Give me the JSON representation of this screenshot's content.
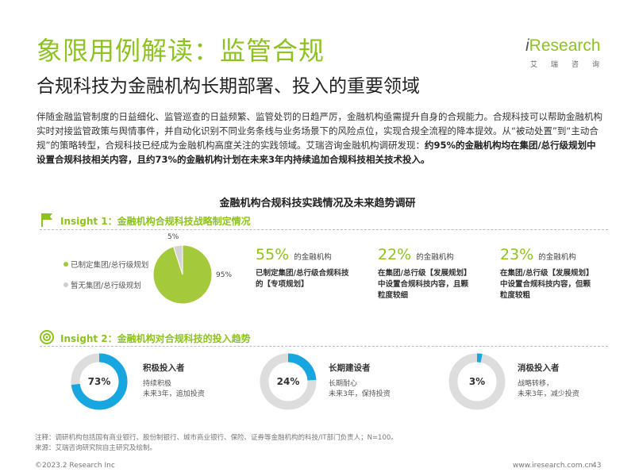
{
  "header": {
    "title": "象限用例解读：监管合规",
    "subtitle": "合规科技为金融机构长期部署、投入的重要领域"
  },
  "logo": {
    "word_i": "i",
    "word_rest": "Research",
    "cn": "艾瑞咨询"
  },
  "intro": {
    "normal": "伴随金融监管制度的日益细化、监管巡查的日益频繁、监管处罚的日趋严厉，金融机构亟需提升自身的合规能力。合规科技可以帮助金融机构实时对接监管政策与舆情事件，并自动化识别不同业务条线与业务场景下的风险点位，实现合规全流程的降本提效。从“被动处置”到“主动合规”的策略转型，合规科技已经成为金融机构高度关注的实践领域。艾瑞咨询金融机构调研发现：",
    "bold": "约95%的金融机构均在集团/总行级规划中设置合规科技相关内容，且约73%的金融机构计划在未来3年内持续追加合规科技相关技术投入。"
  },
  "survey_title": "金融机构合规科技实践情况及未来趋势调研",
  "insight1": {
    "label": "Insight 1：金融机构合规科技战略制定情况",
    "legend": [
      {
        "label": "已制定集团/总行级规划",
        "color": "#a4c93a"
      },
      {
        "label": "暂无集团/总行级规划",
        "color": "#cfcfcf"
      }
    ],
    "pie_labels": {
      "small": "5%",
      "large": "95%"
    },
    "stats": [
      {
        "value": "55%",
        "unit": "的金融机构",
        "desc_line1": "已制定集团/总行级合规科技",
        "desc_line2": "的【专项规划】"
      },
      {
        "value": "22%",
        "unit": "的金融机构",
        "desc_line1": "在集团/总行级【发展规划】",
        "desc_line2": "中设置合规科技内容，且颗",
        "desc_line3": "粒度较细"
      },
      {
        "value": "23%",
        "unit": "的金融机构",
        "desc_line1": "在集团/总行级【发展规划】",
        "desc_line2": "中设置合规科技内容，但颗",
        "desc_line3": "粒度较粗"
      }
    ]
  },
  "insight2": {
    "label": "Insight 2：金融机构对合规科技的投入趋势",
    "donuts": [
      {
        "pct_text": "73%",
        "title": "积极投入者",
        "line1": "持续积极",
        "line2": "未来3年，追加投资"
      },
      {
        "pct_text": "24%",
        "title": "长期建设者",
        "line1": "长期耐心",
        "line2": "未来3年，保持投资"
      },
      {
        "pct_text": "3%",
        "title": "消极投入者",
        "line1": "战略转移，",
        "line2": "未来3年，减少投资"
      }
    ]
  },
  "chart_data": [
    {
      "type": "pie",
      "categories": [
        "已制定集团/总行级规划",
        "暂无集团/总行级规划"
      ],
      "values": [
        95,
        5
      ],
      "colors": [
        "#a4c93a",
        "#d4d4d4"
      ]
    },
    {
      "type": "bar",
      "categories": [
        "积极投入者",
        "长期建设者",
        "消极投入者"
      ],
      "values": [
        73,
        24,
        3
      ],
      "colors": [
        "#17a6df",
        "#dddddd"
      ]
    }
  ],
  "notes": {
    "line1": "注释：调研机构包括国有商业银行、股份制银行、城市商业银行、保险、证券等金融机构的科技/IT部门负责人；N=100。",
    "line2": "来源：艾瑞咨询研究院自主研究及绘制。"
  },
  "footer": {
    "copyright": "©2023.2  Research Inc",
    "url": "www.iresearch.com.cn",
    "page": "43"
  }
}
